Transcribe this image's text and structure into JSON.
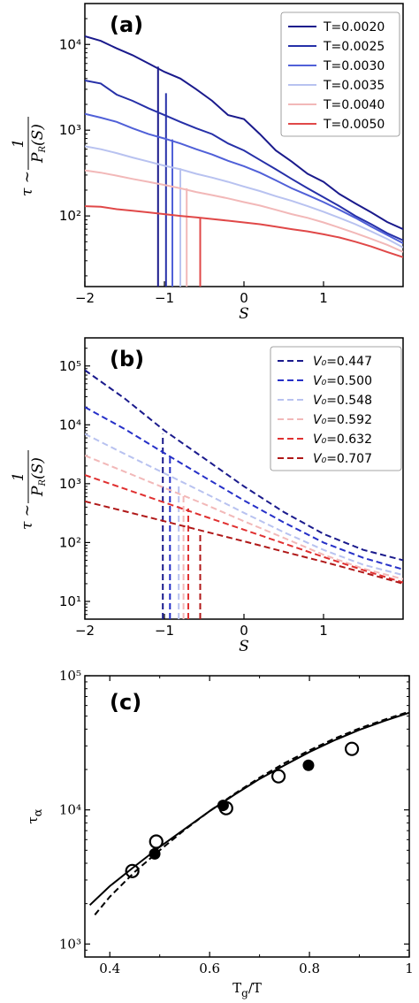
{
  "chart_data": [
    {
      "panel": "(a)",
      "type": "line",
      "xlabel": "S",
      "ylabel_numer": "1",
      "ylabel_left": "τ ~",
      "ylabel_denom": "P_R(S)",
      "yscale": "log",
      "xlim": [
        -2,
        2
      ],
      "ylim": [
        15,
        30000
      ],
      "x_ticks": [
        -2,
        -1,
        0,
        1
      ],
      "x_tick_labels": [
        "−2",
        "−1",
        "0",
        "1"
      ],
      "y_ticks": [
        100,
        1000,
        10000
      ],
      "y_tick_labels": [
        "10²",
        "10³",
        "10⁴"
      ],
      "legend_position": "top-right",
      "series": [
        {
          "name": "T=0.0020",
          "color": "#1a1a8c",
          "points": [
            [
              -2,
              12500
            ],
            [
              -1.8,
              11000
            ],
            [
              -1.6,
              9000
            ],
            [
              -1.4,
              7500
            ],
            [
              -1.2,
              6000
            ],
            [
              -1.0,
              4800
            ],
            [
              -0.8,
              4000
            ],
            [
              -0.6,
              3000
            ],
            [
              -0.4,
              2200
            ],
            [
              -0.2,
              1500
            ],
            [
              0,
              1350
            ],
            [
              0.2,
              900
            ],
            [
              0.4,
              580
            ],
            [
              0.6,
              430
            ],
            [
              0.8,
              310
            ],
            [
              1.0,
              250
            ],
            [
              1.2,
              180
            ],
            [
              1.4,
              140
            ],
            [
              1.6,
              110
            ],
            [
              1.8,
              85
            ],
            [
              2.0,
              70
            ]
          ],
          "threshold_x": -1.08,
          "threshold_y": 5500
        },
        {
          "name": "T=0.0025",
          "color": "#2630a8",
          "points": [
            [
              -2,
              3800
            ],
            [
              -1.8,
              3500
            ],
            [
              -1.6,
              2600
            ],
            [
              -1.4,
              2200
            ],
            [
              -1.2,
              1800
            ],
            [
              -1.0,
              1500
            ],
            [
              -0.8,
              1250
            ],
            [
              -0.6,
              1050
            ],
            [
              -0.4,
              900
            ],
            [
              -0.2,
              700
            ],
            [
              0,
              580
            ],
            [
              0.2,
              450
            ],
            [
              0.4,
              350
            ],
            [
              0.6,
              270
            ],
            [
              0.8,
              210
            ],
            [
              1.0,
              165
            ],
            [
              1.2,
              130
            ],
            [
              1.4,
              100
            ],
            [
              1.6,
              80
            ],
            [
              1.8,
              63
            ],
            [
              2.0,
              52
            ]
          ],
          "threshold_x": -0.98,
          "threshold_y": 2700
        },
        {
          "name": "T=0.0030",
          "color": "#5060d8",
          "points": [
            [
              -2,
              1550
            ],
            [
              -1.8,
              1400
            ],
            [
              -1.6,
              1250
            ],
            [
              -1.4,
              1050
            ],
            [
              -1.2,
              900
            ],
            [
              -1.0,
              800
            ],
            [
              -0.8,
              700
            ],
            [
              -0.6,
              600
            ],
            [
              -0.4,
              520
            ],
            [
              -0.2,
              440
            ],
            [
              0,
              380
            ],
            [
              0.2,
              320
            ],
            [
              0.4,
              260
            ],
            [
              0.6,
              210
            ],
            [
              0.8,
              175
            ],
            [
              1.0,
              145
            ],
            [
              1.2,
              118
            ],
            [
              1.4,
              95
            ],
            [
              1.6,
              75
            ],
            [
              1.8,
              60
            ],
            [
              2.0,
              48
            ]
          ],
          "threshold_x": -0.9,
          "threshold_y": 780
        },
        {
          "name": "T=0.0035",
          "color": "#b8c2f0",
          "points": [
            [
              -2,
              650
            ],
            [
              -1.8,
              600
            ],
            [
              -1.6,
              540
            ],
            [
              -1.4,
              480
            ],
            [
              -1.2,
              430
            ],
            [
              -1.0,
              385
            ],
            [
              -0.8,
              350
            ],
            [
              -0.6,
              310
            ],
            [
              -0.4,
              280
            ],
            [
              -0.2,
              250
            ],
            [
              0,
              220
            ],
            [
              0.2,
              195
            ],
            [
              0.4,
              170
            ],
            [
              0.6,
              150
            ],
            [
              0.8,
              130
            ],
            [
              1.0,
              112
            ],
            [
              1.2,
              95
            ],
            [
              1.4,
              80
            ],
            [
              1.6,
              66
            ],
            [
              1.8,
              54
            ],
            [
              2.0,
              43
            ]
          ],
          "threshold_x": -0.8,
          "threshold_y": 360
        },
        {
          "name": "T=0.0040",
          "color": "#f2b8b8",
          "points": [
            [
              -2,
              340
            ],
            [
              -1.8,
              320
            ],
            [
              -1.6,
              295
            ],
            [
              -1.4,
              270
            ],
            [
              -1.2,
              250
            ],
            [
              -1.0,
              230
            ],
            [
              -0.8,
              210
            ],
            [
              -0.6,
              190
            ],
            [
              -0.4,
              175
            ],
            [
              -0.2,
              160
            ],
            [
              0,
              145
            ],
            [
              0.2,
              132
            ],
            [
              0.4,
              118
            ],
            [
              0.6,
              105
            ],
            [
              0.8,
              95
            ],
            [
              1.0,
              84
            ],
            [
              1.2,
              73
            ],
            [
              1.4,
              63
            ],
            [
              1.6,
              54
            ],
            [
              1.8,
              46
            ],
            [
              2.0,
              38
            ]
          ],
          "threshold_x": -0.72,
          "threshold_y": 210
        },
        {
          "name": "T=0.0050",
          "color": "#e04848",
          "points": [
            [
              -2,
              130
            ],
            [
              -1.8,
              128
            ],
            [
              -1.6,
              120
            ],
            [
              -1.4,
              115
            ],
            [
              -1.2,
              110
            ],
            [
              -1.0,
              105
            ],
            [
              -0.8,
              100
            ],
            [
              -0.6,
              96
            ],
            [
              -0.4,
              92
            ],
            [
              -0.2,
              88
            ],
            [
              0,
              84
            ],
            [
              0.2,
              80
            ],
            [
              0.4,
              75
            ],
            [
              0.6,
              70
            ],
            [
              0.8,
              66
            ],
            [
              1.0,
              61
            ],
            [
              1.2,
              56
            ],
            [
              1.4,
              50
            ],
            [
              1.6,
              44
            ],
            [
              1.8,
              38
            ],
            [
              2.0,
              33
            ]
          ],
          "threshold_x": -0.55,
          "threshold_y": 95
        }
      ]
    },
    {
      "panel": "(b)",
      "type": "line",
      "xlabel": "S",
      "ylabel_numer": "1",
      "ylabel_left": "τ ~",
      "ylabel_denom": "P_R(S)",
      "yscale": "log",
      "xlim": [
        -2,
        2
      ],
      "ylim": [
        5,
        300000
      ],
      "x_ticks": [
        -2,
        -1,
        0,
        1
      ],
      "x_tick_labels": [
        "−2",
        "−1",
        "0",
        "1"
      ],
      "y_ticks": [
        10,
        100,
        1000,
        10000,
        100000
      ],
      "y_tick_labels": [
        "10¹",
        "10²",
        "10³",
        "10⁴",
        "10⁵"
      ],
      "legend_position": "top-right",
      "series": [
        {
          "name": "0.447",
          "color": "#1a1a8c",
          "points": [
            [
              -2,
              85000
            ],
            [
              -1.5,
              28000
            ],
            [
              -1,
              8000
            ],
            [
              -0.5,
              2700
            ],
            [
              0,
              900
            ],
            [
              0.5,
              330
            ],
            [
              1.0,
              140
            ],
            [
              1.5,
              75
            ],
            [
              2.0,
              50
            ]
          ],
          "threshold_x": -1.02,
          "threshold_y": 7000
        },
        {
          "name": "0.500",
          "color": "#2630c8",
          "points": [
            [
              -2,
              20000
            ],
            [
              -1.5,
              8500
            ],
            [
              -1,
              3300
            ],
            [
              -0.5,
              1300
            ],
            [
              0,
              520
            ],
            [
              0.5,
              220
            ],
            [
              1.0,
              100
            ],
            [
              1.5,
              55
            ],
            [
              2.0,
              35
            ]
          ],
          "threshold_x": -0.93,
          "threshold_y": 2800
        },
        {
          "name": "0.548",
          "color": "#b8c2f0",
          "points": [
            [
              -2,
              7000
            ],
            [
              -1.5,
              3200
            ],
            [
              -1,
              1500
            ],
            [
              -0.5,
              700
            ],
            [
              0,
              320
            ],
            [
              0.5,
              150
            ],
            [
              1.0,
              75
            ],
            [
              1.5,
              42
            ],
            [
              2.0,
              28
            ]
          ],
          "threshold_x": -0.82,
          "threshold_y": 1000
        },
        {
          "name": "0.592",
          "color": "#f2b8b8",
          "points": [
            [
              -2,
              3000
            ],
            [
              -1.5,
              1600
            ],
            [
              -1,
              850
            ],
            [
              -0.5,
              450
            ],
            [
              0,
              230
            ],
            [
              0.5,
              120
            ],
            [
              1.0,
              62
            ],
            [
              1.5,
              36
            ],
            [
              2.0,
              24
            ]
          ],
          "threshold_x": -0.76,
          "threshold_y": 620
        },
        {
          "name": "0.632",
          "color": "#e03030",
          "points": [
            [
              -2,
              1400
            ],
            [
              -1.5,
              820
            ],
            [
              -1,
              480
            ],
            [
              -0.5,
              280
            ],
            [
              0,
              165
            ],
            [
              0.5,
              97
            ],
            [
              1.0,
              57
            ],
            [
              1.5,
              34
            ],
            [
              2.0,
              21
            ]
          ],
          "threshold_x": -0.7,
          "threshold_y": 380
        },
        {
          "name": "0.707",
          "color": "#b01818",
          "points": [
            [
              -2,
              500
            ],
            [
              -1.5,
              340
            ],
            [
              -1,
              230
            ],
            [
              -0.5,
              155
            ],
            [
              0,
              105
            ],
            [
              0.5,
              70
            ],
            [
              1.0,
              47
            ],
            [
              1.5,
              31
            ],
            [
              2.0,
              20
            ]
          ],
          "threshold_x": -0.55,
          "threshold_y": 150
        }
      ],
      "legend_symbol": "V₀="
    },
    {
      "panel": "(c)",
      "type": "scatter",
      "xlabel_main": "T",
      "xlabel_sub": "g",
      "xlabel_tail": "/T",
      "ylabel_main": "τ",
      "ylabel_sub": "α",
      "yscale": "log",
      "xlim": [
        0.35,
        1.0
      ],
      "ylim": [
        800,
        100000
      ],
      "x_ticks": [
        0.4,
        0.6,
        0.8,
        1.0
      ],
      "x_tick_labels": [
        "0.4",
        "0.6",
        "0.8",
        "1"
      ],
      "y_ticks": [
        1000,
        10000,
        100000
      ],
      "y_tick_labels": [
        "10³",
        "10⁴",
        "10⁵"
      ],
      "solid_curve": [
        [
          0.36,
          1950
        ],
        [
          0.4,
          2700
        ],
        [
          0.45,
          3800
        ],
        [
          0.5,
          5300
        ],
        [
          0.55,
          7200
        ],
        [
          0.6,
          9800
        ],
        [
          0.65,
          13000
        ],
        [
          0.7,
          17000
        ],
        [
          0.75,
          21500
        ],
        [
          0.8,
          27000
        ],
        [
          0.85,
          33000
        ],
        [
          0.9,
          39500
        ],
        [
          0.95,
          46000
        ],
        [
          1.0,
          53000
        ]
      ],
      "dashed_curve": [
        [
          0.37,
          1650
        ],
        [
          0.4,
          2250
        ],
        [
          0.45,
          3450
        ],
        [
          0.5,
          5000
        ],
        [
          0.55,
          7100
        ],
        [
          0.6,
          9800
        ],
        [
          0.65,
          13200
        ],
        [
          0.7,
          17400
        ],
        [
          0.75,
          22300
        ],
        [
          0.8,
          27800
        ],
        [
          0.85,
          34000
        ],
        [
          0.9,
          40500
        ],
        [
          0.95,
          47000
        ],
        [
          1.0,
          54000
        ]
      ],
      "open_points": [
        [
          0.445,
          3500
        ],
        [
          0.493,
          5800
        ],
        [
          0.633,
          10300
        ],
        [
          0.738,
          17800
        ],
        [
          0.885,
          28500
        ]
      ],
      "filled_points": [
        [
          0.49,
          4700
        ],
        [
          0.627,
          10800
        ],
        [
          0.798,
          21500
        ]
      ]
    }
  ]
}
